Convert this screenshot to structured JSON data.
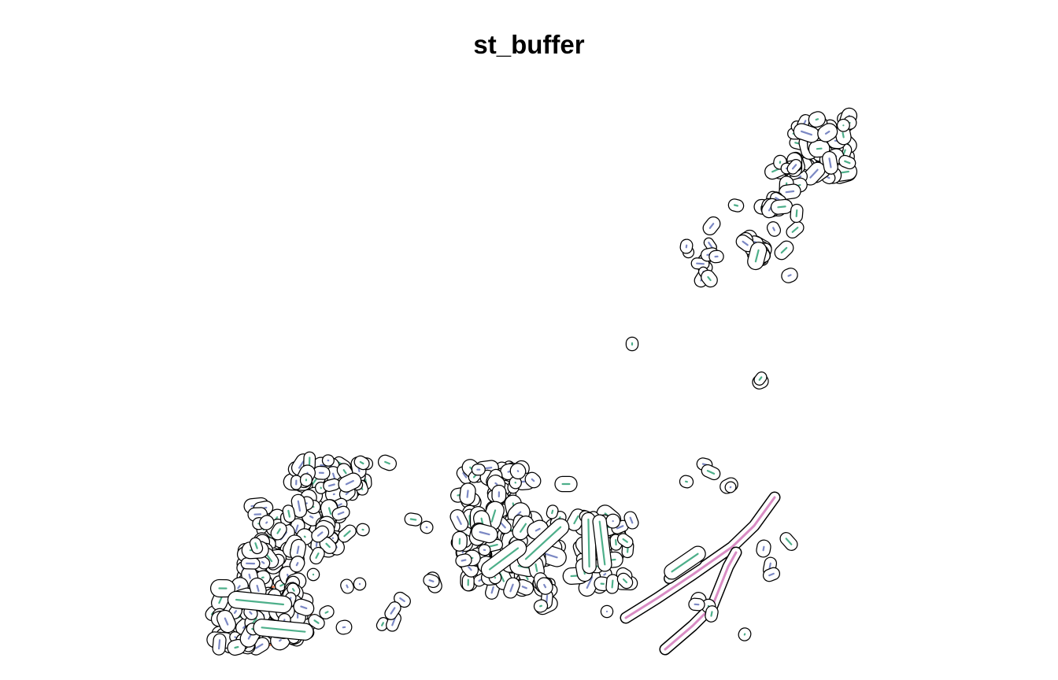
{
  "title": "st_buffer",
  "colors": {
    "outline": "#000000",
    "green": "#4daf8a",
    "blue": "#7b88c4",
    "orange": "#e8794f",
    "pink": "#d98cc4"
  }
}
